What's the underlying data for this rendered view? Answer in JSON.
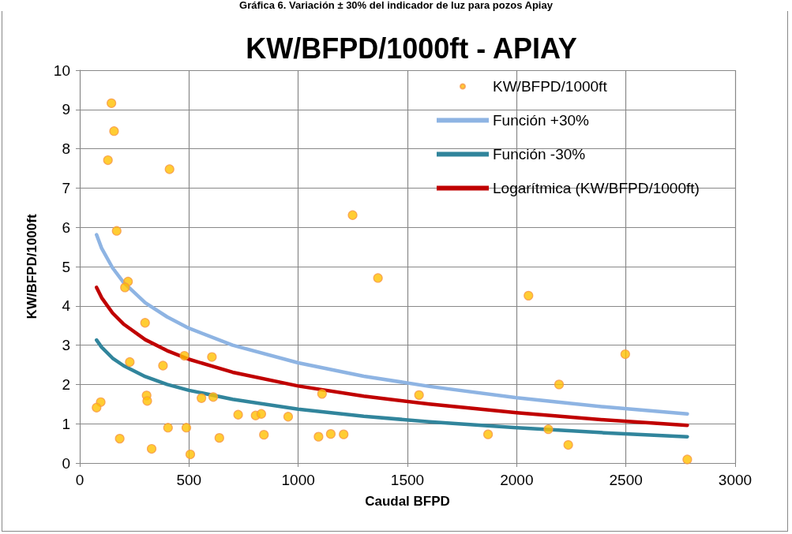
{
  "chart_data": {
    "type": "scatter",
    "title": "KW/BFPD/1000ft - APIAY",
    "annotations": [
      "Gráfica 6. Variación ± 30% del indicador de luz para pozos Apiay"
    ],
    "xlabel": "Caudal BFPD",
    "ylabel": "KW/BFPD/1000ft",
    "series": [
      {
        "name": "KW/BFPD/1000ft",
        "marker": "circle",
        "color": "#ffc000",
        "x": [
          145,
          157,
          129,
          411,
          169,
          221,
          207,
          299,
          229,
          381,
          479,
          605,
          96,
          77,
          306,
          309,
          557,
          611,
          725,
          805,
          831,
          954,
          183,
          404,
          488,
          639,
          843,
          329,
          506,
          1249,
          1365,
          2054,
          1109,
          1553,
          1093,
          1149,
          1208,
          1869,
          2145,
          2497,
          2194,
          2236,
          2781
        ],
        "values": [
          9.16,
          8.45,
          7.71,
          7.48,
          5.91,
          4.62,
          4.47,
          3.57,
          2.57,
          2.48,
          2.73,
          2.7,
          1.55,
          1.41,
          1.72,
          1.58,
          1.65,
          1.68,
          1.23,
          1.21,
          1.25,
          1.18,
          0.62,
          0.9,
          0.9,
          0.64,
          0.72,
          0.36,
          0.22,
          6.31,
          4.71,
          4.26,
          1.76,
          1.73,
          0.67,
          0.74,
          0.73,
          0.73,
          0.86,
          2.77,
          2.0,
          0.46,
          0.09
        ]
      },
      {
        "name": "Función +30%",
        "type": "line",
        "marker": "none",
        "color": "#8eb4e3",
        "x": [
          77,
          100,
          150,
          200,
          300,
          400,
          500,
          700,
          1000,
          1300,
          1600,
          2000,
          2400,
          2781
        ],
        "values": [
          5.81,
          5.47,
          4.97,
          4.6,
          4.08,
          3.72,
          3.43,
          3.0,
          2.55,
          2.21,
          1.95,
          1.66,
          1.43,
          1.25
        ]
      },
      {
        "name": "Función -30%",
        "type": "line",
        "marker": "none",
        "color": "#31859c",
        "x": [
          77,
          100,
          150,
          200,
          300,
          400,
          500,
          700,
          1000,
          1300,
          1600,
          2000,
          2400,
          2781
        ],
        "values": [
          3.13,
          2.95,
          2.67,
          2.48,
          2.2,
          2.0,
          1.85,
          1.62,
          1.37,
          1.19,
          1.05,
          0.9,
          0.77,
          0.67
        ]
      },
      {
        "name": "Logarítmica (KW/BFPD/1000ft)",
        "type": "line",
        "marker": "none",
        "color": "#c00000",
        "x": [
          77,
          100,
          150,
          200,
          300,
          400,
          500,
          700,
          1000,
          1300,
          1600,
          2000,
          2400,
          2781
        ],
        "values": [
          4.47,
          4.21,
          3.82,
          3.54,
          3.14,
          2.86,
          2.64,
          2.31,
          1.96,
          1.7,
          1.5,
          1.28,
          1.1,
          0.96
        ]
      }
    ],
    "xlim": [
      0,
      3000
    ],
    "xticks": [
      0,
      500,
      1000,
      1500,
      2000,
      2500,
      3000
    ],
    "ylim": [
      0,
      10
    ],
    "yticks": [
      0,
      1,
      2,
      3,
      4,
      5,
      6,
      7,
      8,
      9,
      10
    ],
    "grid": true,
    "legend": "top right"
  }
}
